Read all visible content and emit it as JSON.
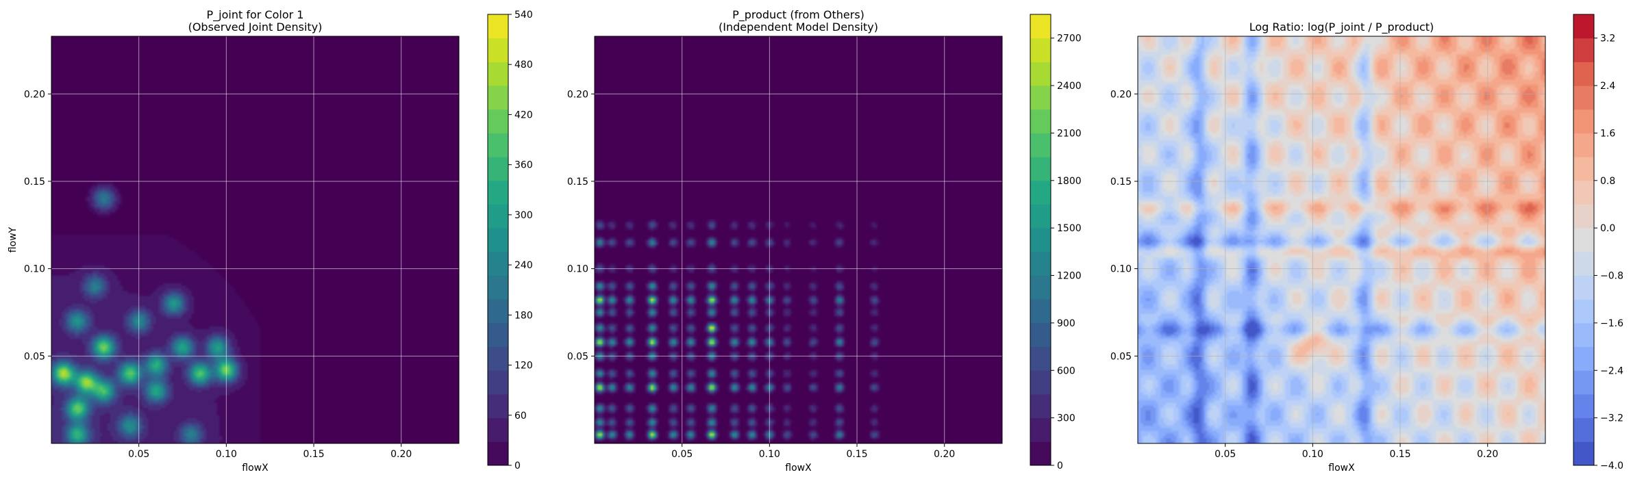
{
  "chart_data": [
    {
      "type": "heatmap",
      "title": "P_joint for Color 1\n(Observed Joint Density)",
      "xlabel": "flowX",
      "ylabel": "flowY",
      "xlim": [
        0.0,
        0.233
      ],
      "ylim": [
        0.0,
        0.233
      ],
      "xticks": [
        0.05,
        0.1,
        0.15,
        0.2
      ],
      "xtick_labels": [
        "0.05",
        "0.10",
        "0.15",
        "0.20"
      ],
      "yticks": [
        0.05,
        0.1,
        0.15,
        0.2
      ],
      "ytick_labels": [
        "0.05",
        "0.10",
        "0.15",
        "0.20"
      ],
      "grid": true,
      "colormap": "viridis",
      "colorbar": {
        "min": 0,
        "max": 540,
        "ticks": [
          0,
          60,
          120,
          180,
          240,
          300,
          360,
          420,
          480,
          540
        ],
        "tick_labels": [
          "0",
          "60",
          "120",
          "180",
          "240",
          "300",
          "360",
          "420",
          "480",
          "540"
        ]
      },
      "density_peaks": [
        {
          "x": 0.007,
          "y": 0.04,
          "value": 430
        },
        {
          "x": 0.02,
          "y": 0.035,
          "value": 400
        },
        {
          "x": 0.015,
          "y": 0.02,
          "value": 360
        },
        {
          "x": 0.03,
          "y": 0.03,
          "value": 320
        },
        {
          "x": 0.03,
          "y": 0.055,
          "value": 380
        },
        {
          "x": 0.045,
          "y": 0.04,
          "value": 360
        },
        {
          "x": 0.06,
          "y": 0.045,
          "value": 300
        },
        {
          "x": 0.06,
          "y": 0.03,
          "value": 280
        },
        {
          "x": 0.075,
          "y": 0.055,
          "value": 290
        },
        {
          "x": 0.085,
          "y": 0.04,
          "value": 360
        },
        {
          "x": 0.1,
          "y": 0.042,
          "value": 400
        },
        {
          "x": 0.095,
          "y": 0.055,
          "value": 280
        },
        {
          "x": 0.015,
          "y": 0.07,
          "value": 240
        },
        {
          "x": 0.05,
          "y": 0.07,
          "value": 220
        },
        {
          "x": 0.07,
          "y": 0.08,
          "value": 260
        },
        {
          "x": 0.025,
          "y": 0.09,
          "value": 200
        },
        {
          "x": 0.08,
          "y": 0.005,
          "value": 200
        },
        {
          "x": 0.03,
          "y": 0.14,
          "value": 220
        },
        {
          "x": 0.015,
          "y": 0.005,
          "value": 300
        },
        {
          "x": 0.045,
          "y": 0.01,
          "value": 220
        }
      ]
    },
    {
      "type": "heatmap",
      "title": "P_product (from Others)\n(Independent Model Density)",
      "xlabel": "flowX",
      "ylabel": "",
      "xlim": [
        0.0,
        0.233
      ],
      "ylim": [
        0.0,
        0.233
      ],
      "xticks": [
        0.05,
        0.1,
        0.15,
        0.2
      ],
      "xtick_labels": [
        "0.05",
        "0.10",
        "0.15",
        "0.20"
      ],
      "yticks": [
        0.05,
        0.1,
        0.15,
        0.2
      ],
      "ytick_labels": [
        "0.05",
        "0.10",
        "0.15",
        "0.20"
      ],
      "grid": true,
      "colormap": "viridis",
      "colorbar": {
        "min": 0,
        "max": 2850,
        "ticks": [
          0,
          300,
          600,
          900,
          1200,
          1500,
          1800,
          2100,
          2400,
          2700
        ],
        "tick_labels": [
          "0",
          "300",
          "600",
          "900",
          "1200",
          "1500",
          "1800",
          "2100",
          "2400",
          "2700"
        ]
      },
      "marginal_x_peaks": [
        0.003,
        0.01,
        0.02,
        0.033,
        0.045,
        0.055,
        0.067,
        0.08,
        0.09,
        0.1,
        0.11,
        0.125,
        0.14,
        0.16
      ],
      "marginal_y_peaks": [
        0.005,
        0.012,
        0.02,
        0.032,
        0.04,
        0.05,
        0.058,
        0.066,
        0.075,
        0.082,
        0.09,
        0.1,
        0.115,
        0.125
      ],
      "max_point": {
        "x": 0.067,
        "y": 0.066,
        "value": 2700
      }
    },
    {
      "type": "heatmap",
      "title": "Log Ratio: log(P_joint / P_product)",
      "xlabel": "flowX",
      "ylabel": "",
      "xlim": [
        0.0,
        0.233
      ],
      "ylim": [
        0.0,
        0.233
      ],
      "xticks": [
        0.05,
        0.1,
        0.15,
        0.2
      ],
      "xtick_labels": [
        "0.05",
        "0.10",
        "0.15",
        "0.20"
      ],
      "yticks": [
        0.05,
        0.1,
        0.15,
        0.2
      ],
      "ytick_labels": [
        "0.05",
        "0.10",
        "0.15",
        "0.20"
      ],
      "grid": true,
      "colormap": "coolwarm",
      "colorbar": {
        "min": -4.0,
        "max": 3.6,
        "ticks": [
          -4.0,
          -3.2,
          -2.4,
          -1.6,
          -0.8,
          0.0,
          0.8,
          1.6,
          2.4,
          3.2
        ],
        "tick_labels": [
          "−4.0",
          "−3.2",
          "−2.4",
          "−1.6",
          "−0.8",
          "0.0",
          "0.8",
          "1.6",
          "2.4",
          "3.2"
        ]
      },
      "trend": "positive toward top-right (large flowX and flowY), negative bands along x≈0.035, 0.065, 0.13"
    }
  ]
}
